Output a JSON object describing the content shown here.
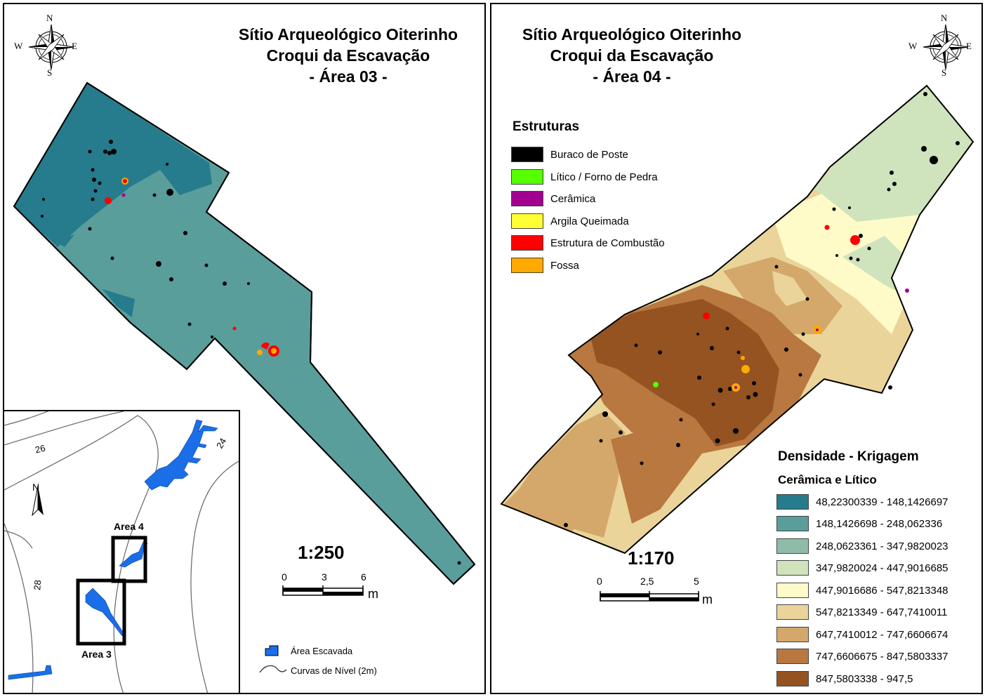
{
  "left_panel": {
    "title_line1": "Sítio Arqueológico Oiterinho",
    "title_line2": "Croqui da Escavação",
    "title_line3": "- Área 03 -",
    "compass": {
      "n": "N",
      "s": "S",
      "e": "E",
      "w": "W"
    },
    "scale_ratio": "1:250",
    "scale_ticks": [
      "0",
      "3",
      "6"
    ],
    "scale_unit": "m",
    "inset": {
      "north": "N",
      "contour_labels": [
        "26",
        "24",
        "28"
      ],
      "area3_label": "Area 3",
      "area4_label": "Area 4",
      "legend_excavated": "Área Escavada",
      "legend_contours": "Curvas de Nível (2m)"
    }
  },
  "right_panel": {
    "title_line1": "Sítio Arqueológico Oiterinho",
    "title_line2": "Croqui da Escavação",
    "title_line3": "- Área 04 -",
    "compass": {
      "n": "N",
      "s": "S",
      "e": "E",
      "w": "W"
    },
    "structures_title": "Estruturas",
    "structures": [
      {
        "label": "Buraco de Poste",
        "color": "#000000"
      },
      {
        "label": "Lítico / Forno de Pedra",
        "color": "#55ff00"
      },
      {
        "label": "Cerâmica",
        "color": "#a2008e"
      },
      {
        "label": "Argila Queimada",
        "color": "#ffff33"
      },
      {
        "label": "Estrutura de Combustão",
        "color": "#ff0000"
      },
      {
        "label": "Fossa",
        "color": "#ffaa00"
      }
    ],
    "density_title": "Densidade - Krigagem",
    "density_subtitle": "Cerâmica e Lítico",
    "density_classes": [
      {
        "label": "48,22300339 - 148,1426697",
        "color": "#267b8c"
      },
      {
        "label": "148,1426698 - 248,062336",
        "color": "#5a9e9c"
      },
      {
        "label": "248,0623361 - 347,9820023",
        "color": "#8fbca8"
      },
      {
        "label": "347,9820024 - 447,9016685",
        "color": "#cfe3bd"
      },
      {
        "label": "447,9016686 - 547,8213348",
        "color": "#fffbc8"
      },
      {
        "label": "547,8213349 - 647,7410011",
        "color": "#ead49a"
      },
      {
        "label": "647,7410012 - 747,6606674",
        "color": "#d4a86a"
      },
      {
        "label": "747,6606675 - 847,5803337",
        "color": "#b8783f"
      },
      {
        "label": "847,5803338 - 947,5",
        "color": "#955321"
      }
    ],
    "scale_ratio": "1:170",
    "scale_ticks": [
      "0",
      "2,5",
      "5"
    ],
    "scale_unit": "m"
  }
}
